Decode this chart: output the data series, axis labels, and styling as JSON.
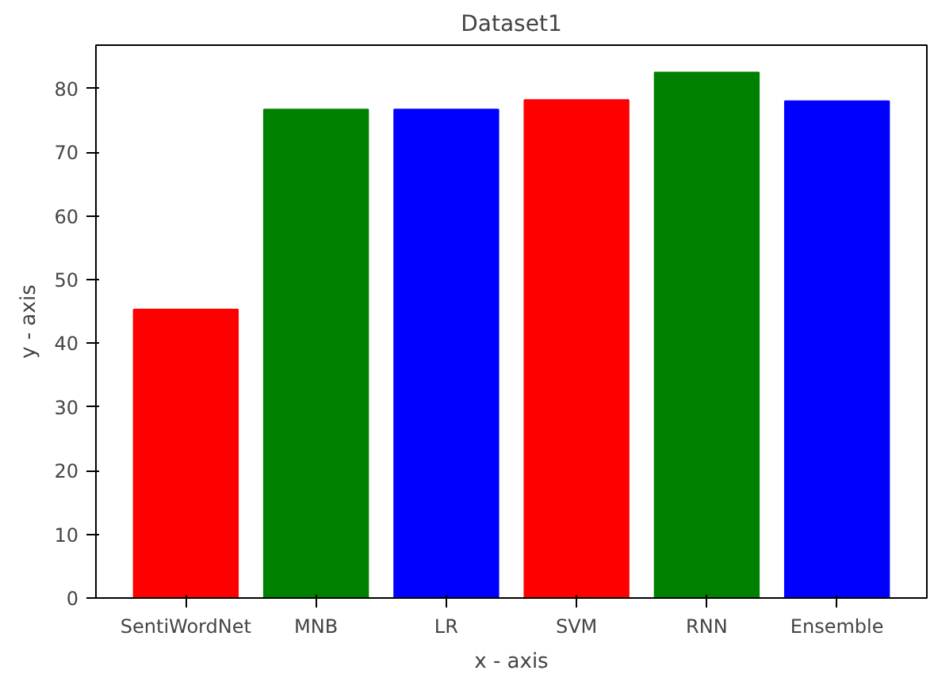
{
  "chart_data": {
    "type": "bar",
    "title": "Dataset1",
    "xlabel": "x - axis",
    "ylabel": "y - axis",
    "categories": [
      "SentiWordNet",
      "MNB",
      "LR",
      "SVM",
      "RNN",
      "Ensemble"
    ],
    "values": [
      45.3,
      76.7,
      76.7,
      78.2,
      82.5,
      78.0
    ],
    "colors": [
      "#ff0000",
      "#008000",
      "#0000ff",
      "#ff0000",
      "#008000",
      "#0000ff"
    ],
    "ylim": [
      0,
      86.8
    ],
    "yticks": [
      0,
      10,
      20,
      30,
      40,
      50,
      60,
      70,
      80
    ],
    "grid": false
  }
}
